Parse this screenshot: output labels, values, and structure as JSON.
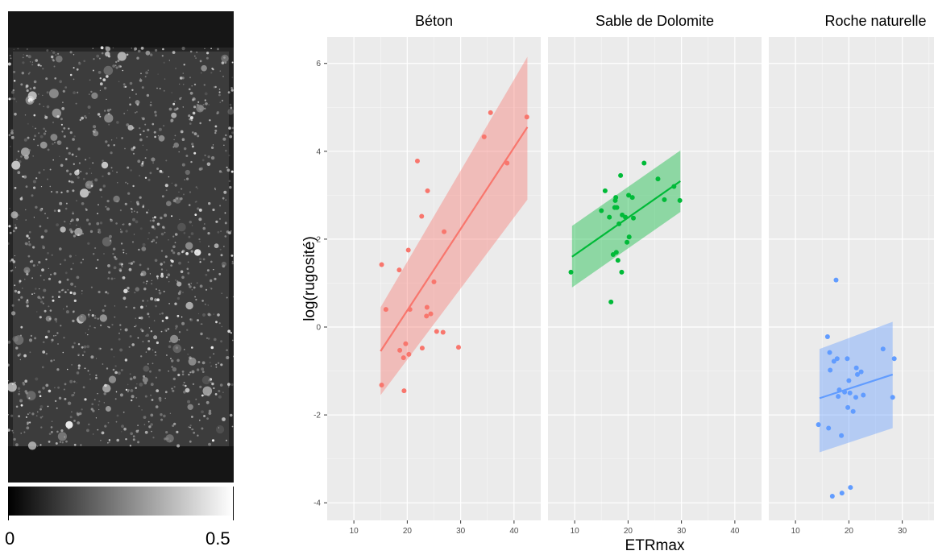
{
  "image_panel": {
    "colorbar_min_label": "0",
    "colorbar_max_label": "0.5",
    "colormap_colors": [
      "#000000",
      "#ffffff"
    ]
  },
  "chart_data": {
    "type": "scatter",
    "xlabel": "ETRmax",
    "ylabel": "log(rugosité)",
    "xlim": [
      5,
      45
    ],
    "ylim": [
      -4.4,
      6.6
    ],
    "x_ticks": [
      10,
      20,
      30,
      40
    ],
    "y_ticks": [
      -4,
      -2,
      0,
      2,
      4,
      6
    ],
    "grid": true,
    "legend": "none",
    "facets": [
      {
        "title": "Béton",
        "color": "#f8766d",
        "fit": {
          "x": [
            15,
            42.5
          ],
          "y": [
            -0.55,
            4.55
          ],
          "lower": [
            -1.55,
            2.9
          ],
          "upper": [
            0.45,
            6.15
          ]
        },
        "points": [
          [
            15.2,
            1.42
          ],
          [
            15.2,
            -1.32
          ],
          [
            16,
            0.4
          ],
          [
            18.5,
            1.3
          ],
          [
            18.6,
            -0.53
          ],
          [
            19.3,
            -0.7
          ],
          [
            19.4,
            -1.45
          ],
          [
            19.7,
            -0.38
          ],
          [
            20.2,
            1.75
          ],
          [
            20.3,
            -0.62
          ],
          [
            20.5,
            0.4
          ],
          [
            21.9,
            3.78
          ],
          [
            22.7,
            2.52
          ],
          [
            22.8,
            -0.48
          ],
          [
            23.6,
            0.25
          ],
          [
            23.7,
            0.45
          ],
          [
            23.8,
            3.1
          ],
          [
            24.4,
            0.3
          ],
          [
            25,
            1.03
          ],
          [
            25.5,
            -0.1
          ],
          [
            26.7,
            -0.12
          ],
          [
            26.9,
            2.17
          ],
          [
            29.6,
            -0.46
          ],
          [
            34.4,
            4.33
          ],
          [
            35.6,
            4.88
          ],
          [
            38.7,
            3.73
          ],
          [
            42.4,
            4.78
          ]
        ]
      },
      {
        "title": "Sable de Dolomite",
        "color": "#00ba38",
        "fit": {
          "x": [
            9.5,
            29.8
          ],
          "y": [
            1.6,
            3.32
          ],
          "lower": [
            0.9,
            2.62
          ],
          "upper": [
            2.3,
            4.02
          ]
        },
        "points": [
          [
            9.3,
            1.25
          ],
          [
            15,
            2.65
          ],
          [
            15.7,
            3.1
          ],
          [
            16.5,
            2.5
          ],
          [
            16.8,
            0.57
          ],
          [
            17.2,
            1.65
          ],
          [
            17.5,
            2.72
          ],
          [
            17.6,
            2.88
          ],
          [
            17.7,
            2.95
          ],
          [
            17.8,
            1.7
          ],
          [
            17.9,
            2.72
          ],
          [
            18.1,
            1.52
          ],
          [
            18.3,
            2.35
          ],
          [
            18.6,
            3.45
          ],
          [
            18.8,
            1.25
          ],
          [
            18.9,
            2.55
          ],
          [
            19.5,
            2.5
          ],
          [
            19.8,
            1.93
          ],
          [
            20.1,
            3.0
          ],
          [
            20.2,
            2.05
          ],
          [
            20.8,
            2.95
          ],
          [
            21,
            2.48
          ],
          [
            23,
            3.73
          ],
          [
            25.6,
            3.37
          ],
          [
            26.8,
            2.9
          ],
          [
            28.6,
            3.2
          ],
          [
            29.7,
            2.88
          ]
        ]
      },
      {
        "title": "Roche naturelle",
        "color": "#619cff",
        "fit": {
          "x": [
            14.5,
            28.2
          ],
          "y": [
            -1.62,
            -1.08
          ],
          "lower": [
            -2.85,
            -2.3
          ],
          "upper": [
            -0.5,
            0.12
          ]
        },
        "points": [
          [
            14.3,
            -2.22
          ],
          [
            16,
            -0.22
          ],
          [
            16.2,
            -2.3
          ],
          [
            16.4,
            -0.58
          ],
          [
            16.5,
            -0.98
          ],
          [
            16.9,
            -3.85
          ],
          [
            17.2,
            -0.78
          ],
          [
            17.6,
            1.07
          ],
          [
            17.8,
            -0.72
          ],
          [
            18,
            -1.58
          ],
          [
            18.2,
            -1.43
          ],
          [
            18.6,
            -2.47
          ],
          [
            18.7,
            -3.78
          ],
          [
            19.2,
            -1.48
          ],
          [
            19.7,
            -0.72
          ],
          [
            19.8,
            -1.83
          ],
          [
            20,
            -1.22
          ],
          [
            20.2,
            -1.5
          ],
          [
            20.3,
            -3.65
          ],
          [
            20.8,
            -1.92
          ],
          [
            21.3,
            -1.6
          ],
          [
            21.4,
            -0.93
          ],
          [
            21.6,
            -1.08
          ],
          [
            22.3,
            -1.02
          ],
          [
            22.7,
            -1.55
          ],
          [
            26.4,
            -0.5
          ],
          [
            28.2,
            -1.6
          ],
          [
            28.5,
            -0.72
          ]
        ]
      }
    ]
  }
}
